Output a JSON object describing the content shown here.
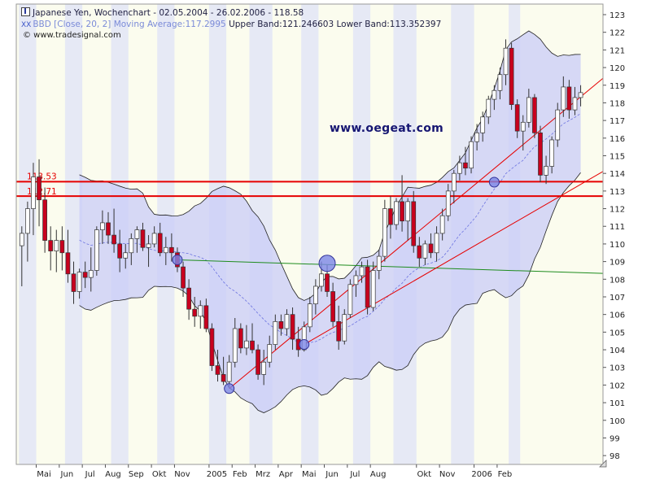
{
  "legend": {
    "title": "Japanese Yen, Wochenchart - 02.05.2004 - 26.02.2006 - 118.58",
    "indicator_name": "BBD [Close, 20, 2] Moving Average:117.2995",
    "indicator_values": "Upper Band:121.246603 Lower Band:113.352397",
    "source": "© www.tradesignal.com"
  },
  "watermark": "www.oegeat.com",
  "colors": {
    "up_candle": "#ffffff",
    "down_candle": "#c8001e",
    "band_fill": "#c9ccf7",
    "band_line": "#222222",
    "moving_average": "#6d74e0",
    "support_lines": "#e60000",
    "horizontal_lines": "#e60000",
    "green_line": "#1e8c1e",
    "stripe": "#e6e9f5",
    "background": "#fbfcee"
  },
  "chart_data": {
    "type": "candlestick",
    "ylim": [
      97.5,
      123.6
    ],
    "y_ticks": [
      98,
      99,
      100,
      101,
      102,
      103,
      104,
      105,
      106,
      107,
      108,
      109,
      110,
      111,
      112,
      113,
      114,
      115,
      116,
      117,
      118,
      119,
      120,
      121,
      122,
      123
    ],
    "x_labels": [
      "Mai",
      "Jun",
      "Jul",
      "Aug",
      "Sep",
      "Okt",
      "Nov",
      "2005",
      "Feb",
      "Mrz",
      "Apr",
      "Mai",
      "Jun",
      "Jul",
      "Aug",
      "Okt",
      "Nov",
      "2006",
      "Feb"
    ],
    "x_label_weeks": [
      3,
      7,
      11,
      15,
      19,
      23,
      27,
      33,
      37,
      41,
      45,
      49,
      53,
      57,
      61,
      69,
      73,
      79,
      83
    ],
    "level_labels": [
      "113.53",
      "112.71"
    ],
    "levels": [
      113.53,
      112.71
    ],
    "green_line": {
      "from": [
        27,
        109.1
      ],
      "to": [
        94,
        108.4
      ]
    },
    "red_lines": [
      {
        "from": [
          36,
          101.8
        ],
        "to": [
          95,
          117.8
        ]
      },
      {
        "from": [
          49,
          104.3
        ],
        "to": [
          95,
          113.0
        ]
      }
    ],
    "markers": [
      [
        27,
        109.1
      ],
      [
        36,
        101.8
      ],
      [
        49,
        104.3
      ],
      [
        53,
        108.9
      ],
      [
        82,
        113.5
      ]
    ],
    "weekly_ohlc": [
      [
        109.9,
        111.0,
        107.6,
        110.6
      ],
      [
        110.6,
        112.4,
        109.0,
        112.0
      ],
      [
        112.0,
        114.6,
        110.5,
        113.8
      ],
      [
        113.8,
        114.8,
        111.0,
        112.5
      ],
      [
        112.5,
        113.2,
        109.5,
        110.2
      ],
      [
        110.2,
        111.0,
        108.5,
        109.6
      ],
      [
        109.6,
        110.8,
        108.4,
        110.2
      ],
      [
        110.2,
        111.0,
        108.5,
        109.5
      ],
      [
        109.5,
        110.8,
        107.8,
        108.3
      ],
      [
        108.3,
        109.0,
        106.6,
        107.3
      ],
      [
        107.3,
        108.6,
        106.9,
        108.4
      ],
      [
        108.4,
        109.0,
        107.5,
        108.1
      ],
      [
        108.1,
        109.8,
        107.3,
        108.5
      ],
      [
        108.5,
        111.0,
        108.2,
        110.8
      ],
      [
        110.8,
        111.9,
        110.0,
        111.2
      ],
      [
        111.2,
        111.8,
        110.0,
        110.5
      ],
      [
        110.5,
        112.0,
        109.5,
        110.0
      ],
      [
        110.0,
        110.8,
        108.4,
        109.2
      ],
      [
        109.2,
        110.0,
        108.6,
        109.5
      ],
      [
        109.5,
        110.6,
        108.8,
        110.3
      ],
      [
        110.3,
        111.0,
        109.5,
        110.8
      ],
      [
        110.8,
        111.2,
        109.6,
        109.8
      ],
      [
        109.8,
        110.5,
        108.7,
        110.0
      ],
      [
        110.0,
        111.0,
        109.8,
        110.6
      ],
      [
        110.6,
        111.2,
        109.3,
        109.5
      ],
      [
        109.5,
        110.4,
        108.8,
        109.8
      ],
      [
        109.8,
        110.6,
        109.0,
        109.5
      ],
      [
        109.5,
        109.8,
        108.4,
        108.7
      ],
      [
        108.7,
        109.0,
        107.0,
        107.5
      ],
      [
        107.5,
        108.0,
        105.7,
        106.3
      ],
      [
        106.3,
        107.0,
        105.3,
        105.9
      ],
      [
        105.9,
        106.8,
        105.2,
        106.5
      ],
      [
        106.5,
        106.9,
        105.0,
        105.2
      ],
      [
        105.2,
        105.5,
        102.8,
        103.1
      ],
      [
        103.1,
        104.0,
        102.2,
        102.6
      ],
      [
        102.6,
        103.6,
        102.0,
        102.2
      ],
      [
        102.2,
        103.7,
        101.9,
        103.3
      ],
      [
        103.3,
        105.8,
        103.0,
        105.2
      ],
      [
        105.2,
        105.5,
        103.8,
        104.1
      ],
      [
        104.1,
        105.4,
        103.7,
        104.5
      ],
      [
        104.5,
        105.5,
        103.8,
        104.0
      ],
      [
        104.0,
        104.3,
        102.3,
        102.6
      ],
      [
        102.6,
        104.0,
        102.0,
        103.3
      ],
      [
        103.3,
        104.8,
        103.0,
        104.3
      ],
      [
        104.3,
        106.0,
        104.0,
        105.6
      ],
      [
        105.6,
        106.0,
        104.8,
        105.2
      ],
      [
        105.2,
        106.3,
        104.8,
        106.0
      ],
      [
        106.0,
        106.4,
        104.0,
        104.6
      ],
      [
        104.6,
        105.3,
        103.6,
        104.0
      ],
      [
        104.0,
        105.6,
        103.9,
        105.3
      ],
      [
        105.3,
        107.0,
        105.0,
        106.6
      ],
      [
        106.6,
        108.0,
        106.0,
        107.6
      ],
      [
        107.6,
        109.0,
        107.3,
        108.3
      ],
      [
        108.3,
        108.8,
        107.0,
        107.3
      ],
      [
        107.3,
        107.8,
        105.3,
        105.6
      ],
      [
        105.6,
        106.5,
        104.0,
        104.5
      ],
      [
        104.5,
        106.3,
        104.3,
        106.0
      ],
      [
        106.0,
        108.0,
        105.8,
        107.7
      ],
      [
        107.7,
        108.5,
        107.0,
        108.2
      ],
      [
        108.2,
        109.0,
        107.8,
        108.7
      ],
      [
        108.7,
        109.1,
        106.0,
        106.4
      ],
      [
        106.4,
        109.0,
        106.2,
        108.5
      ],
      [
        108.5,
        109.7,
        108.0,
        109.3
      ],
      [
        109.3,
        112.5,
        109.0,
        112.0
      ],
      [
        112.0,
        112.7,
        110.3,
        111.1
      ],
      [
        111.1,
        112.6,
        110.8,
        112.4
      ],
      [
        112.4,
        113.9,
        110.7,
        111.3
      ],
      [
        111.3,
        112.6,
        110.2,
        112.4
      ],
      [
        112.4,
        113.0,
        109.5,
        109.9
      ],
      [
        109.9,
        110.4,
        108.7,
        109.2
      ],
      [
        109.2,
        110.2,
        108.8,
        110.0
      ],
      [
        110.0,
        110.6,
        109.2,
        109.5
      ],
      [
        109.5,
        111.0,
        109.0,
        110.6
      ],
      [
        110.6,
        112.0,
        110.2,
        111.6
      ],
      [
        111.6,
        113.4,
        111.3,
        113.0
      ],
      [
        113.0,
        114.2,
        112.3,
        114.0
      ],
      [
        114.0,
        115.0,
        113.6,
        114.6
      ],
      [
        114.6,
        115.5,
        113.9,
        114.3
      ],
      [
        114.3,
        116.1,
        114.0,
        115.8
      ],
      [
        115.8,
        116.8,
        115.3,
        116.3
      ],
      [
        116.3,
        117.5,
        115.8,
        117.2
      ],
      [
        117.2,
        118.4,
        116.8,
        118.2
      ],
      [
        118.2,
        119.0,
        117.6,
        118.7
      ],
      [
        118.7,
        120.0,
        118.2,
        119.6
      ],
      [
        119.6,
        121.6,
        119.0,
        121.1
      ],
      [
        121.1,
        121.4,
        117.6,
        117.9
      ],
      [
        117.9,
        118.2,
        116.0,
        116.4
      ],
      [
        116.4,
        117.3,
        115.3,
        116.9
      ],
      [
        116.9,
        118.8,
        116.6,
        118.3
      ],
      [
        118.3,
        118.5,
        116.0,
        116.3
      ],
      [
        116.3,
        116.7,
        113.5,
        113.9
      ],
      [
        113.9,
        115.0,
        113.4,
        114.4
      ],
      [
        114.4,
        116.1,
        114.0,
        115.9
      ],
      [
        115.9,
        118.0,
        115.5,
        117.6
      ],
      [
        117.6,
        119.5,
        117.2,
        118.9
      ],
      [
        118.9,
        119.3,
        117.1,
        117.6
      ],
      [
        117.6,
        118.9,
        117.3,
        118.3
      ],
      [
        118.3,
        119.0,
        117.8,
        118.58
      ]
    ]
  }
}
